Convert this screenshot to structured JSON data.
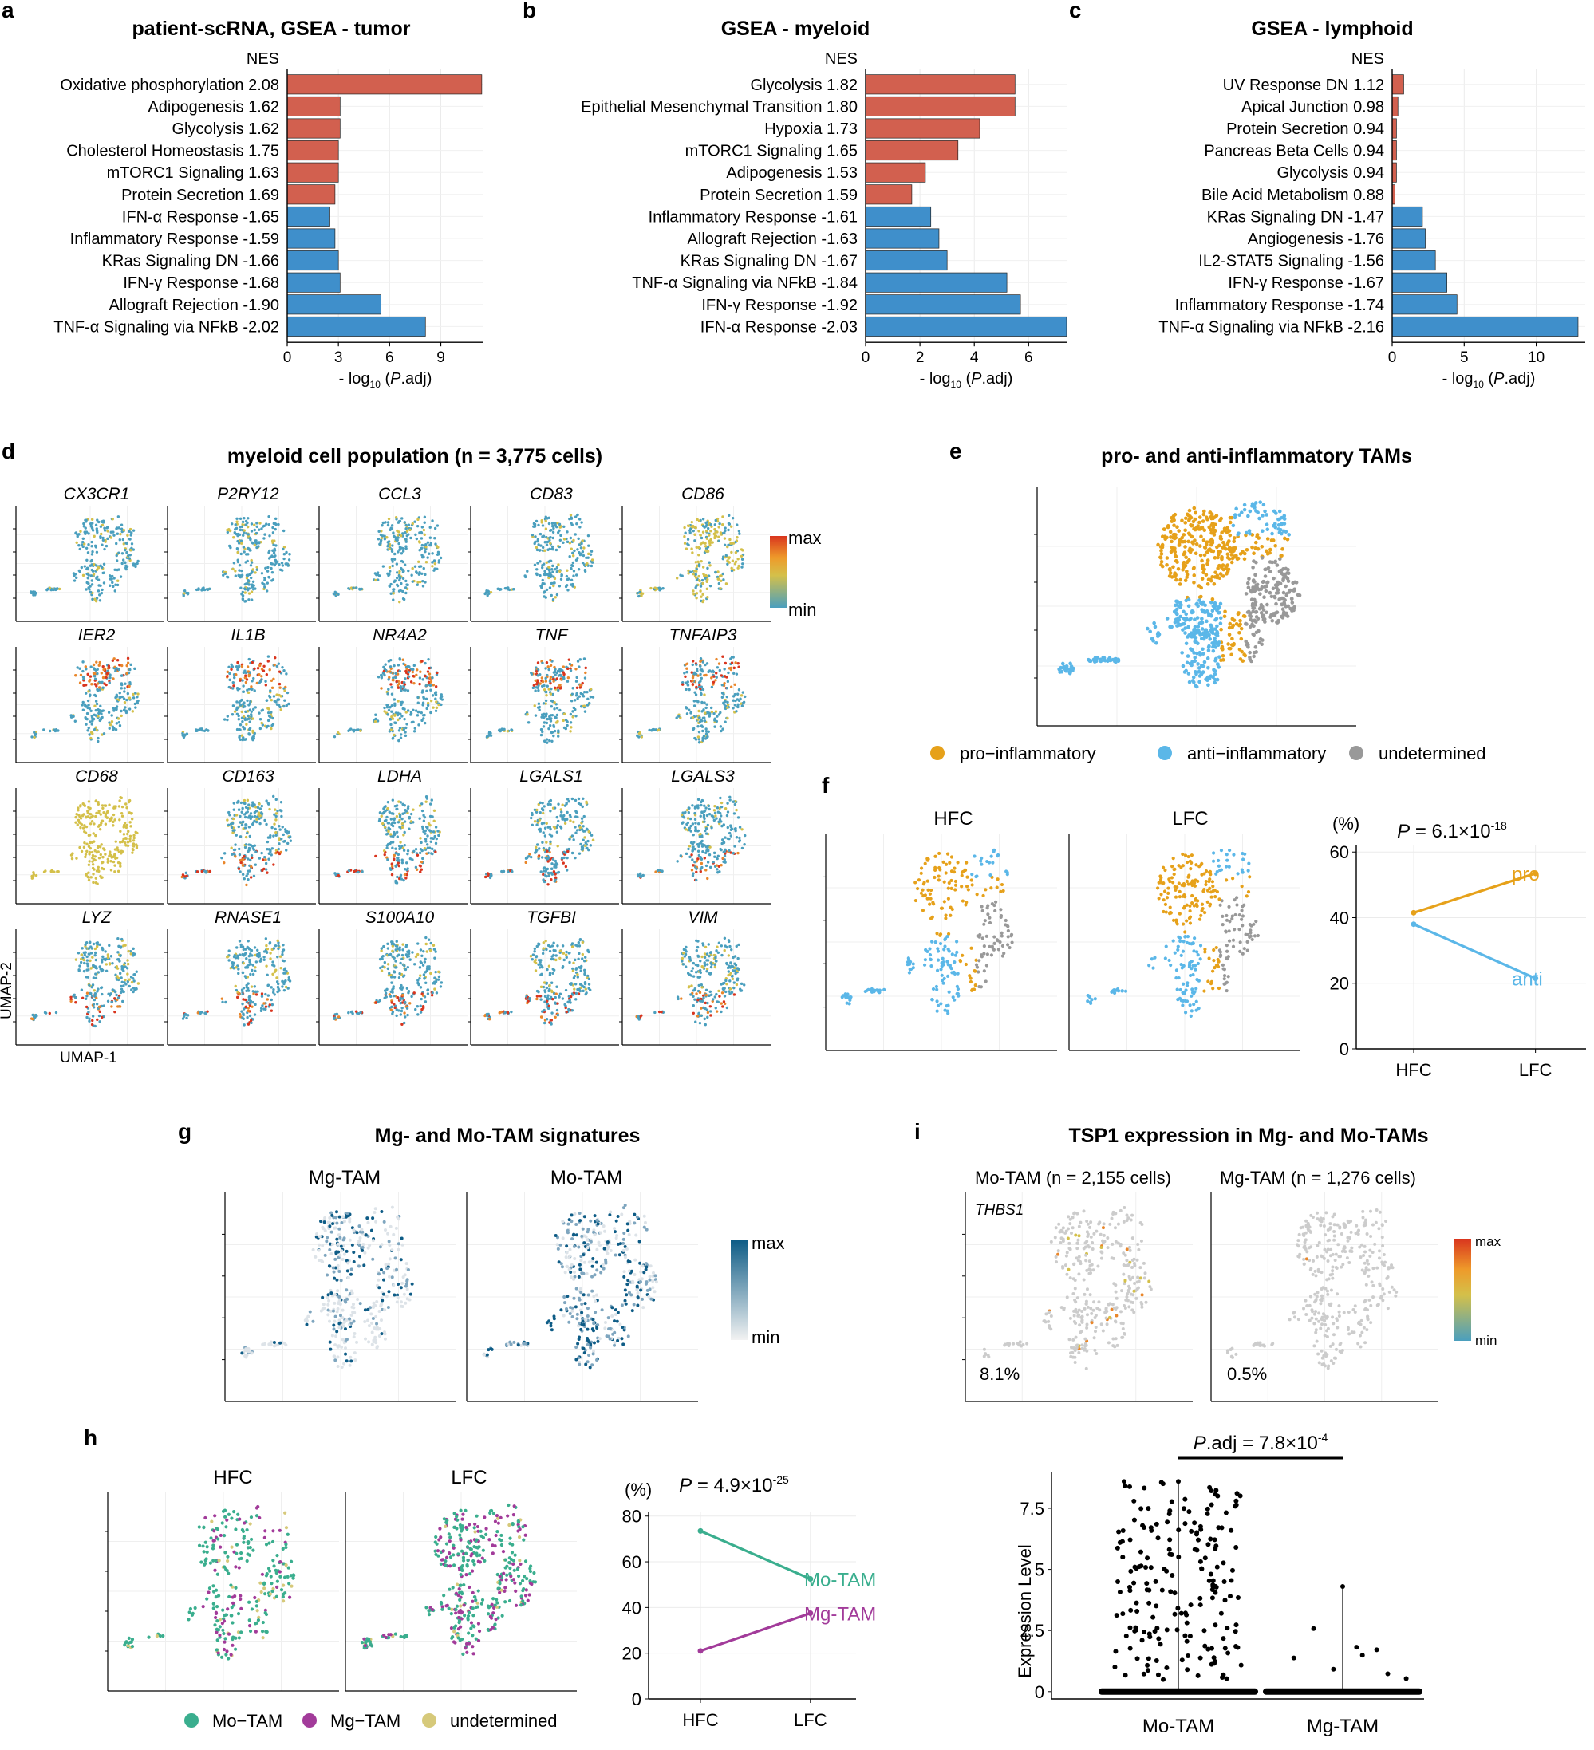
{
  "panel_labels": [
    "a",
    "b",
    "c",
    "d",
    "e",
    "f",
    "g",
    "h",
    "i"
  ],
  "chart_data": [
    {
      "panel": "a",
      "type": "bar",
      "orientation": "horizontal",
      "title": "patient-scRNA, GSEA - tumor",
      "legend_title": "NES",
      "xlabel_pre": "- log",
      "xlabel_sub": "10",
      "xlabel_open": " (",
      "xlabel_italic": "P",
      "xlabel_post": ".adj)",
      "xlim": [
        0,
        11.5
      ],
      "xticks": [
        0,
        3,
        6,
        9
      ],
      "categories": [
        "Oxidative phosphorylation 2.08",
        "Adipogenesis 1.62",
        "Glycolysis 1.62",
        "Cholesterol Homeostasis 1.75",
        "mTORC1 Signaling 1.63",
        "Protein Secretion 1.69",
        "IFN-α Response -1.65",
        "Inflammatory Response -1.59",
        "KRas Signaling DN -1.66",
        "IFN-γ Response -1.68",
        "Allograft Rejection -1.90",
        "TNF-α Signaling via NFkB -2.02"
      ],
      "values": [
        11.4,
        3.1,
        3.1,
        3.0,
        3.0,
        2.8,
        2.5,
        2.8,
        3.0,
        3.1,
        5.5,
        8.1
      ],
      "nes_sign": [
        "pos",
        "pos",
        "pos",
        "pos",
        "pos",
        "pos",
        "neg",
        "neg",
        "neg",
        "neg",
        "neg",
        "neg"
      ]
    },
    {
      "panel": "b",
      "type": "bar",
      "orientation": "horizontal",
      "title": "GSEA - myeloid",
      "legend_title": "NES",
      "xlabel_pre": "- log",
      "xlabel_sub": "10",
      "xlabel_open": " (",
      "xlabel_italic": "P",
      "xlabel_post": ".adj)",
      "xlim": [
        0,
        7.4
      ],
      "xticks": [
        0,
        2,
        4,
        6
      ],
      "categories": [
        "Glycolysis 1.82",
        "Epithelial Mesenchymal Transition 1.80",
        "Hypoxia 1.73",
        "mTORC1 Signaling 1.65",
        "Adipogenesis 1.53",
        "Protein Secretion 1.59",
        "Inflammatory Response -1.61",
        "Allograft Rejection -1.63",
        "KRas Signaling DN -1.67",
        "TNF-α Signaling via NFkB -1.84",
        "IFN-γ Response -1.92",
        "IFN-α Response -2.03"
      ],
      "values": [
        5.5,
        5.5,
        4.2,
        3.4,
        2.2,
        1.7,
        2.4,
        2.7,
        3.0,
        5.2,
        5.7,
        7.4
      ],
      "nes_sign": [
        "pos",
        "pos",
        "pos",
        "pos",
        "pos",
        "pos",
        "neg",
        "neg",
        "neg",
        "neg",
        "neg",
        "neg"
      ]
    },
    {
      "panel": "c",
      "type": "bar",
      "orientation": "horizontal",
      "title": "GSEA - lymphoid",
      "legend_title": "NES",
      "xlabel_pre": "- log",
      "xlabel_sub": "10",
      "xlabel_open": " (",
      "xlabel_italic": "P",
      "xlabel_post": ".adj)",
      "xlim": [
        0,
        13.4
      ],
      "xticks": [
        0,
        5,
        10
      ],
      "categories": [
        "UV Response DN 1.12",
        "Apical Junction 0.98",
        "Protein Secretion 0.94",
        "Pancreas Beta Cells 0.94",
        "Glycolysis 0.94",
        "Bile Acid Metabolism 0.88",
        "KRas Signaling DN -1.47",
        "Angiogenesis -1.76",
        "IL2-STAT5 Signaling -1.56",
        "IFN-γ Response -1.67",
        "Inflammatory Response -1.74",
        "TNF-α Signaling via NFkB -2.16"
      ],
      "values": [
        0.8,
        0.4,
        0.3,
        0.3,
        0.3,
        0.2,
        2.1,
        2.3,
        3.0,
        3.8,
        4.5,
        12.9
      ],
      "nes_sign": [
        "pos",
        "pos",
        "pos",
        "pos",
        "pos",
        "pos",
        "neg",
        "neg",
        "neg",
        "neg",
        "neg",
        "neg"
      ]
    },
    {
      "panel": "f",
      "type": "line",
      "title_p": "P",
      "title_rest": " = 6.1×10",
      "title_exp": "-18",
      "ylabel": "(%)",
      "ylim": [
        0,
        62
      ],
      "yticks": [
        0,
        20,
        40,
        60
      ],
      "categories": [
        "HFC",
        "LFC"
      ],
      "series": [
        {
          "name": "pro",
          "values": [
            41.5,
            53.5
          ],
          "color": "#E6A11A"
        },
        {
          "name": "anti",
          "values": [
            38,
            21.5
          ],
          "color": "#5BB7E8"
        }
      ]
    },
    {
      "panel": "h",
      "type": "line",
      "title_p": "P",
      "title_rest": " = 4.9×10",
      "title_exp": "-25",
      "ylabel": "(%)",
      "ylim": [
        0,
        82
      ],
      "yticks": [
        0,
        20,
        40,
        60,
        80
      ],
      "categories": [
        "HFC",
        "LFC"
      ],
      "series": [
        {
          "name": "Mo-TAM",
          "values": [
            73.5,
            52.5
          ],
          "color": "#3AAE8E"
        },
        {
          "name": "Mg-TAM",
          "values": [
            21,
            37.5
          ],
          "color": "#A23B9A"
        }
      ]
    },
    {
      "panel": "i",
      "type": "scatter",
      "annotation_italic": "P",
      "annotation_rest": ".adj = 7.8×10",
      "annotation_exp": "-4",
      "ylabel": "Expression Level",
      "ylim": [
        -0.3,
        9
      ],
      "yticks": [
        0,
        2.5,
        5,
        7.5
      ],
      "categories": [
        "Mo-TAM",
        "Mg-TAM"
      ],
      "max_values": [
        8.6,
        4.3
      ]
    }
  ],
  "bar_colors": {
    "pos": "#D2604F",
    "neg": "#3F8FCB"
  },
  "panel_d": {
    "title": "myeloid cell population (n = 3,775 cells)",
    "genes": [
      "CX3CR1",
      "P2RY12",
      "CCL3",
      "CD83",
      "CD86",
      "IER2",
      "IL1B",
      "NR4A2",
      "TNF",
      "TNFAIP3",
      "CD68",
      "CD163",
      "LDHA",
      "LGALS1",
      "LGALS3",
      "LYZ",
      "RNASE1",
      "S100A10",
      "TGFBI",
      "VIM"
    ],
    "scale_max": "max",
    "scale_min": "min",
    "axis_y": "UMAP-2",
    "axis_x": "UMAP-1"
  },
  "panel_e": {
    "title": "pro- and anti-inflammatory TAMs",
    "legend": [
      {
        "label": "pro−inflammatory",
        "color": "#E6A11A"
      },
      {
        "label": "anti−inflammatory",
        "color": "#5BB7E8"
      },
      {
        "label": "undetermined",
        "color": "#999999"
      }
    ]
  },
  "panel_f": {
    "umap_titles": [
      "HFC",
      "LFC"
    ],
    "label_pro": "pro",
    "label_anti": "anti"
  },
  "panel_g": {
    "title": "Mg- and Mo-TAM signatures",
    "umap_titles": [
      "Mg-TAM",
      "Mo-TAM"
    ],
    "scale_max": "max",
    "scale_min": "min"
  },
  "panel_h": {
    "umap_titles": [
      "HFC",
      "LFC"
    ],
    "label_mo": "Mo-TAM",
    "label_mg": "Mg-TAM",
    "legend": [
      {
        "label": "Mo−TAM",
        "color": "#3AAE8E"
      },
      {
        "label": "Mg−TAM",
        "color": "#A23B9A"
      },
      {
        "label": "undetermined",
        "color": "#D6C97A"
      }
    ]
  },
  "panel_i": {
    "title": "TSP1 expression in Mg- and Mo-TAMs",
    "umap_titles": [
      "Mo-TAM (n = 2,155 cells)",
      "Mg-TAM (n = 1,276 cells)"
    ],
    "gene": "THBS1",
    "percents": [
      "8.1%",
      "0.5%"
    ],
    "scale_max": "max",
    "scale_min": "min"
  },
  "colors": {
    "umap_blue": "#4A9FBE",
    "umap_yellow": "#D4C04A",
    "umap_red": "#D9351E",
    "umap_grey": "#CCCCCC",
    "sig_dark": "#0E5C86"
  }
}
